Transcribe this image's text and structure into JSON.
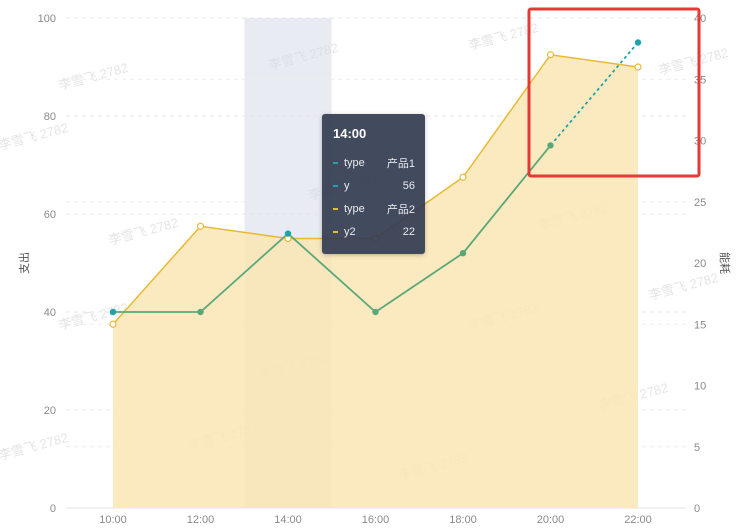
{
  "chart_data": {
    "type": "line",
    "categories": [
      "10:00",
      "12:00",
      "14:00",
      "16:00",
      "18:00",
      "20:00",
      "22:00"
    ],
    "series": [
      {
        "name": "产品1",
        "field": "y",
        "axis": "left",
        "type": "line",
        "values": [
          40,
          40,
          56,
          40,
          52,
          74,
          95
        ],
        "color": "#5aa87a",
        "point_color": "#1fa3a8",
        "dashed_from_index": 5
      },
      {
        "name": "产品2",
        "field": "y2",
        "axis": "right",
        "type": "area",
        "values": [
          15,
          23,
          22,
          22,
          27,
          37,
          36
        ],
        "color": "#e8b934",
        "fill": "#fae5b4"
      }
    ],
    "left_axis": {
      "title": "支出",
      "ticks": [
        0,
        20,
        40,
        60,
        80,
        100
      ],
      "range": [
        0,
        100
      ]
    },
    "right_axis": {
      "title": "能耗",
      "ticks": [
        0,
        5,
        10,
        15,
        20,
        25,
        30,
        35,
        40
      ],
      "range": [
        0,
        40
      ]
    },
    "grid": true,
    "highlight_band": "14:00",
    "annotation_box": "20:00-22:00",
    "tooltip": {
      "title": "14:00",
      "rows": [
        {
          "name": "type",
          "value": "产品1",
          "color": "#1fa3a8"
        },
        {
          "name": "y",
          "value": "56",
          "color": "#1fa3a8"
        },
        {
          "name": "type",
          "value": "产品2",
          "color": "#e8b934"
        },
        {
          "name": "y2",
          "value": "22",
          "color": "#e8b934"
        }
      ]
    },
    "watermark": "李雪飞 2782"
  }
}
